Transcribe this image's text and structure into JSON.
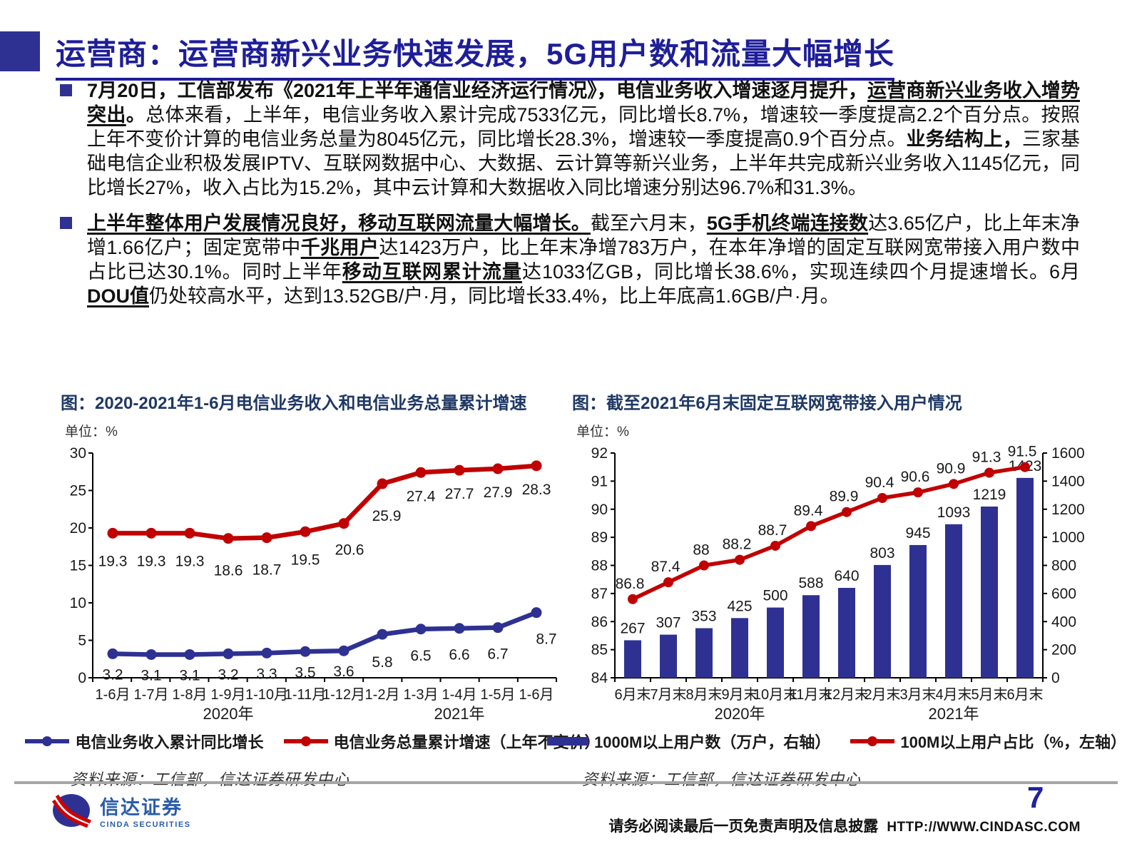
{
  "page": {
    "title": "运营商：运营商新兴业务快速发展，5G用户数和流量大幅增长"
  },
  "bullets": [
    {
      "segments": [
        {
          "t": "7月20日，工信部发布《2021年上半年通信业经济运行情况》，电信业务收入增速逐月提升，",
          "b": 1
        },
        {
          "t": "运营商新兴业务收入增势突出",
          "b": 1,
          "u": 1
        },
        {
          "t": "。",
          "b": 1
        },
        {
          "t": "总体来看，上半年，电信业务收入累计完成7533亿元，同比增长8.7%，增速较一季度提高2.2个百分点。按照上年不变价计算的电信业务总量为8045亿元，同比增长28.3%，增速较一季度提高0.9个百分点。",
          "b": 0
        },
        {
          "t": "业务结构上，",
          "b": 1
        },
        {
          "t": "三家基础电信企业积极发展IPTV、互联网数据中心、大数据、云计算等新兴业务，上半年共完成新兴业务收入1145亿元，同比增长27%，收入占比为15.2%，其中云计算和大数据收入同比增速分别达96.7%和31.3%。",
          "b": 0
        }
      ]
    },
    {
      "segments": [
        {
          "t": "上半年整体用户发展情况良好，移动互联网流量大幅增长。",
          "b": 1,
          "u": 1
        },
        {
          "t": "截至六月末，",
          "b": 0
        },
        {
          "t": "5G手机终端连接数",
          "b": 1,
          "u": 1
        },
        {
          "t": "达3.65亿户，比上年末净增1.66亿户；固定宽带中",
          "b": 0
        },
        {
          "t": "千兆用户",
          "b": 1,
          "u": 1
        },
        {
          "t": "达1423万户，比上年末净增783万户，在本年净增的固定互联网宽带接入用户数中占比已达30.1%。同时上半年",
          "b": 0
        },
        {
          "t": "移动互联网累计流量",
          "b": 1,
          "u": 1
        },
        {
          "t": "达1033亿GB，同比增长38.6%，实现连续四个月提速增长。6月",
          "b": 0
        },
        {
          "t": "DOU值",
          "b": 1,
          "u": 1
        },
        {
          "t": "仍处较高水平，达到13.52GB/户·月，同比增长33.4%，比上年底高1.6GB/户·月。",
          "b": 0
        }
      ]
    }
  ],
  "chart_data": [
    {
      "type": "line",
      "title": "图：2020-2021年1-6月电信业务收入和电信业务总量累计增速",
      "unit_label": "单位：%",
      "categories": [
        "1-6月",
        "1-7月",
        "1-8月",
        "1-9月",
        "1-10月",
        "1-11月",
        "1-12月",
        "1-2月",
        "1-3月",
        "1-4月",
        "1-5月",
        "1-6月"
      ],
      "year_groups": [
        {
          "label": "2020年",
          "span": [
            0,
            6
          ]
        },
        {
          "label": "2021年",
          "span": [
            7,
            11
          ]
        }
      ],
      "ylim": [
        0,
        30
      ],
      "yticks": [
        0,
        5,
        10,
        15,
        20,
        25,
        30
      ],
      "grid": false,
      "legend_position": "bottom",
      "series": [
        {
          "name": "电信业务收入累计同比增长",
          "color": "#2E3192",
          "values": [
            3.2,
            3.1,
            3.1,
            3.2,
            3.3,
            3.5,
            3.6,
            5.8,
            6.5,
            6.6,
            6.7,
            8.7
          ]
        },
        {
          "name": "电信业务总量累计增速（上年不变价）",
          "color": "#C00000",
          "values": [
            19.3,
            19.3,
            19.3,
            18.6,
            18.7,
            19.5,
            20.6,
            25.9,
            27.4,
            27.7,
            27.9,
            28.3
          ]
        }
      ],
      "source": "资料来源：工信部，信达证券研发中心"
    },
    {
      "type": "bar",
      "title": "图：截至2021年6月末固定互联网宽带接入用户情况",
      "unit_label": "单位：%",
      "categories": [
        "6月末",
        "7月末",
        "8月末",
        "9月末",
        "10月末",
        "11月末",
        "12月末",
        "2月末",
        "3月末",
        "4月末",
        "5月末",
        "6月末"
      ],
      "year_groups": [
        {
          "label": "2020年",
          "span": [
            0,
            6
          ]
        },
        {
          "label": "2021年",
          "span": [
            7,
            11
          ]
        }
      ],
      "left_ylim": [
        84,
        92
      ],
      "left_yticks": [
        84,
        85,
        86,
        87,
        88,
        89,
        90,
        91,
        92
      ],
      "right_ylim": [
        0,
        1600
      ],
      "right_yticks": [
        0,
        200,
        400,
        600,
        800,
        1000,
        1200,
        1400,
        1600
      ],
      "grid": false,
      "legend_position": "bottom",
      "bar_series": {
        "name": "1000M以上用户数（万户，右轴）",
        "color": "#2E3192",
        "axis": "right",
        "values": [
          267,
          307,
          353,
          425,
          500,
          588,
          640,
          803,
          945,
          1093,
          1219,
          1423
        ]
      },
      "line_series": {
        "name": "100M以上用户占比（%，左轴）",
        "color": "#C00000",
        "axis": "left",
        "values": [
          86.8,
          87.4,
          88,
          88.2,
          88.7,
          89.4,
          89.9,
          90.4,
          90.6,
          90.9,
          91.3,
          91.5
        ]
      },
      "source": "资料来源：工信部，信达证券研发中心"
    }
  ],
  "footer": {
    "logo_cn": "信达证券",
    "logo_en": "CINDA SECURITIES",
    "page_number": "7",
    "disclaimer": "请务必阅读最后一页免责声明及信息披露",
    "url": "HTTP://WWW.CINDASC.COM"
  },
  "colors": {
    "navy": "#2E3192",
    "title_navy": "#1E1E99",
    "red": "#C00000",
    "chart_title_navy": "#1F3864",
    "divider_gray": "#A6A6A6"
  }
}
